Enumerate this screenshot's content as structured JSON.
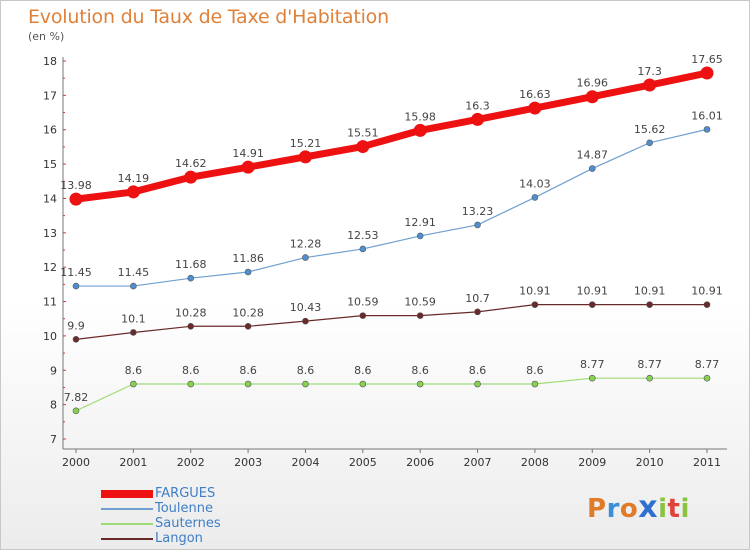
{
  "title": "Evolution du Taux de Taxe d'Habitation",
  "unit_label": "(en %)",
  "logo": {
    "letters": [
      "P",
      "r",
      "o",
      "x",
      "i",
      "t",
      "i"
    ],
    "colors": [
      "#e07b2a",
      "#3a8fd6",
      "#e07b2a",
      "#2f6fcf",
      "#8ac43f",
      "#e0433a",
      "#8ac43f"
    ]
  },
  "chart_data": {
    "type": "line",
    "x": [
      "2000",
      "2001",
      "2002",
      "2003",
      "2004",
      "2005",
      "2006",
      "2007",
      "2008",
      "2009",
      "2010",
      "2011"
    ],
    "ylim": [
      7,
      18
    ],
    "yticks": [
      "7",
      "8",
      "9",
      "10",
      "11",
      "12",
      "13",
      "14",
      "15",
      "16",
      "17",
      "18"
    ],
    "grid": false,
    "legend_position": "bottom-left",
    "series": [
      {
        "name": "FARGUES",
        "color": "#ee1111",
        "marker_fill": "#ee1111",
        "width": 7,
        "labels": [
          "13.98",
          "14.19",
          "14.62",
          "14.91",
          "15.21",
          "15.51",
          "15.98",
          "16.3",
          "16.63",
          "16.96",
          "17.3",
          "17.65"
        ],
        "values": [
          13.98,
          14.19,
          14.62,
          14.91,
          15.21,
          15.51,
          15.98,
          16.3,
          16.63,
          16.96,
          17.3,
          17.65
        ]
      },
      {
        "name": "Toulenne",
        "color": "#6fa0cf",
        "marker_fill": "#4f8fd0",
        "width": 1.2,
        "labels": [
          "11.45",
          "11.45",
          "11.68",
          "11.86",
          "12.28",
          "12.53",
          "12.91",
          "13.23",
          "14.03",
          "14.87",
          "15.62",
          "16.01"
        ],
        "values": [
          11.45,
          11.45,
          11.68,
          11.86,
          12.28,
          12.53,
          12.91,
          13.23,
          14.03,
          14.87,
          15.62,
          16.01
        ]
      },
      {
        "name": "Sauternes",
        "color": "#9fdc77",
        "marker_fill": "#86d24e",
        "width": 1.2,
        "labels": [
          "7.82",
          "8.6",
          "8.6",
          "8.6",
          "8.6",
          "8.6",
          "8.6",
          "8.6",
          "8.6",
          "8.77",
          "8.77",
          "8.77"
        ],
        "values": [
          7.82,
          8.6,
          8.6,
          8.6,
          8.6,
          8.6,
          8.6,
          8.6,
          8.6,
          8.77,
          8.77,
          8.77
        ]
      },
      {
        "name": "Langon",
        "color": "#6b2a2a",
        "marker_fill": "#6b2a2a",
        "width": 1.2,
        "labels": [
          "9.9",
          "10.1",
          "10.28",
          "10.28",
          "10.43",
          "10.59",
          "10.59",
          "10.7",
          "10.91",
          "10.91",
          "10.91",
          "10.91"
        ],
        "values": [
          9.9,
          10.1,
          10.28,
          10.28,
          10.43,
          10.59,
          10.59,
          10.7,
          10.91,
          10.91,
          10.91,
          10.91
        ]
      }
    ]
  }
}
